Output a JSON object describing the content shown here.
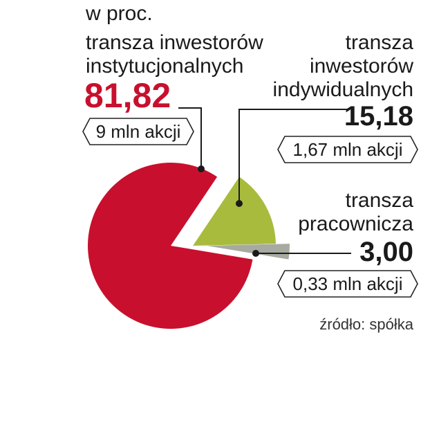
{
  "chart_data": {
    "type": "pie",
    "unit_label": "w proc.",
    "slices": [
      {
        "label_lines": [
          "transza inwestorów",
          "instytucjonalnych"
        ],
        "value": 81.82,
        "value_label": "81,82",
        "shares": "9 mln akcji",
        "color": "#c8102e"
      },
      {
        "label_lines": [
          "transza",
          "inwestorów",
          "indywidualnych"
        ],
        "value": 15.18,
        "value_label": "15,18",
        "shares": "1,67 mln akcji",
        "color": "#a9bb3c"
      },
      {
        "label_lines": [
          "transza",
          "pracownicza"
        ],
        "value": 3.0,
        "value_label": "3,00",
        "shares": "0,33 mln akcji",
        "color": "#a7aaa1"
      }
    ],
    "source": "źródło: spółka"
  }
}
